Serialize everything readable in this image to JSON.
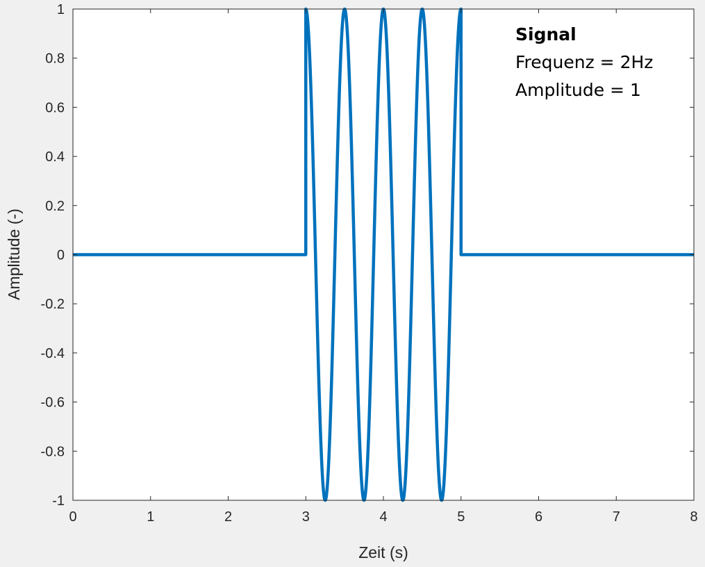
{
  "chart_data": {
    "type": "line",
    "xlabel": "Zeit (s)",
    "ylabel": "Amplitude (-)",
    "xlim": [
      0,
      8
    ],
    "ylim": [
      -1,
      1
    ],
    "x_ticks": [
      0,
      1,
      2,
      3,
      4,
      5,
      6,
      7,
      8
    ],
    "y_ticks": [
      -1,
      -0.8,
      -0.6,
      -0.4,
      -0.2,
      0,
      0.2,
      0.4,
      0.6,
      0.8,
      1
    ],
    "x_tick_labels": [
      "0",
      "1",
      "2",
      "3",
      "4",
      "5",
      "6",
      "7",
      "8"
    ],
    "y_tick_labels": [
      "-1",
      "-0.8",
      "-0.6",
      "-0.4",
      "-0.2",
      "0",
      "0.2",
      "0.4",
      "0.6",
      "0.8",
      "1"
    ],
    "grid": false,
    "series": [
      {
        "color": "#0072bd",
        "function": "y = cos(2*pi*2*(t-3)) for 3 <= t <= 5, otherwise 0",
        "x": [
          0,
          3,
          3,
          3.25,
          3.5,
          3.75,
          4,
          4.25,
          4.5,
          4.75,
          5,
          5,
          8
        ],
        "values": [
          0,
          0,
          1,
          -1,
          1,
          -1,
          1,
          -1,
          1,
          -1,
          1,
          0,
          0
        ]
      }
    ],
    "annotations": [
      {
        "text": "Signal",
        "bold": true
      },
      {
        "text": "Frequenz = 2Hz",
        "bold": false
      },
      {
        "text": "Amplitude = 1",
        "bold": false
      }
    ]
  },
  "colors": {
    "figure_background": "#f0f0f0",
    "axes_background": "#ffffff",
    "axis_color": "#262626",
    "line_color": "#0072bd"
  }
}
